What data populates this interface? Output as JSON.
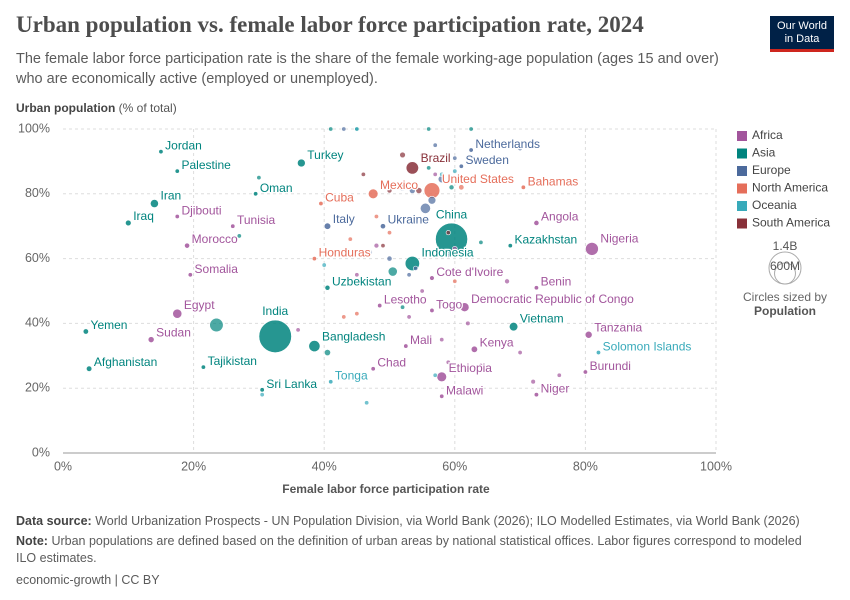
{
  "chart_data": {
    "type": "scatter",
    "title": "Urban population vs. female labor force participation rate, 2024",
    "subtitle": "The female labor force participation rate is the share of the female working-age population (ages 15 and over) who are economically active (employed or unemployed).",
    "logo": [
      "Our World",
      "in Data"
    ],
    "y_label": "Urban population",
    "y_label_unit": "(% of total)",
    "x_label": "Female labor force participation rate",
    "xlim": [
      0,
      100
    ],
    "ylim": [
      0,
      100
    ],
    "xticks": [
      {
        "value": 0,
        "label": "0%"
      },
      {
        "value": 20,
        "label": "20%"
      },
      {
        "value": 40,
        "label": "40%"
      },
      {
        "value": 60,
        "label": "60%"
      },
      {
        "value": 80,
        "label": "80%"
      },
      {
        "value": 100,
        "label": "100%"
      }
    ],
    "yticks": [
      {
        "value": 0,
        "label": "0%"
      },
      {
        "value": 20,
        "label": "20%"
      },
      {
        "value": 40,
        "label": "40%"
      },
      {
        "value": 60,
        "label": "60%"
      },
      {
        "value": 80,
        "label": "80%"
      },
      {
        "value": 100,
        "label": "100%"
      }
    ],
    "grid": true,
    "size_legend": {
      "values": [
        {
          "value": 1400000000,
          "label": "1.4B"
        },
        {
          "value": 600000000,
          "label": "600M"
        }
      ],
      "caption": "Circles sized by",
      "variable": "Population"
    },
    "series": [
      {
        "name": "Africa",
        "color": "#a2559c",
        "x": [
          17.5,
          26,
          19,
          19.5,
          17.5,
          13.5,
          48.5,
          56.5,
          61.5,
          56.5,
          72.5,
          72.5,
          81,
          52.5,
          47.5,
          58,
          63,
          80.5,
          80,
          72.5,
          58,
          36,
          55,
          58,
          68,
          62,
          72,
          64,
          70,
          48,
          60,
          58,
          76,
          45,
          57,
          59,
          53
        ],
        "y": [
          73,
          70,
          64,
          55,
          43,
          35,
          45.5,
          44,
          45,
          54,
          51,
          71,
          63,
          33,
          26,
          23.5,
          32,
          36.5,
          25,
          18,
          17.5,
          38,
          50,
          46,
          53,
          40,
          22,
          27,
          31,
          64,
          63,
          35,
          24,
          55,
          86,
          28,
          42
        ],
        "sizes": [
          1100000,
          12000000,
          37000000,
          19000000,
          116000000,
          50000000,
          2300000,
          9500000,
          110000000,
          31000000,
          14000000,
          37000000,
          230000000,
          24000000,
          20000000,
          130000000,
          56000000,
          68000000,
          14000000,
          27000000,
          21000000,
          18000000,
          9000000,
          13000000,
          34000000,
          29000000,
          30000000,
          19000000,
          20000000,
          33000000,
          35000000,
          15000000,
          7000000,
          2600000,
          5000000,
          5000000,
          8000000
        ],
        "labels": [
          "Djibouti",
          "Tunisia",
          "Morocco",
          "Somalia",
          "Egypt",
          "Sudan",
          "Lesotho",
          "Togo",
          "Democratic Republic of Congo",
          "Cote d'Ivoire",
          "Benin",
          "Angola",
          "Nigeria",
          "Mali",
          "Chad",
          "Ethiopia",
          "Kenya",
          "Tanzania",
          "Burundi",
          "Niger",
          "Malawi",
          null,
          null,
          null,
          null,
          null,
          null,
          null,
          null,
          null,
          null,
          null,
          null,
          null,
          null,
          null,
          null
        ]
      },
      {
        "name": "Asia",
        "color": "#00847e",
        "x": [
          15,
          17.5,
          14,
          10,
          29.5,
          36.5,
          3.5,
          4,
          32.5,
          38.5,
          21.5,
          40.5,
          53.5,
          59.5,
          68.5,
          69,
          30.5,
          23.5,
          40.5,
          50.5,
          62.5,
          56,
          59.5,
          27,
          45,
          56,
          64,
          41,
          30,
          52
        ],
        "y": [
          93,
          87,
          77,
          71,
          80,
          89.5,
          37.5,
          26,
          36,
          33,
          26.5,
          51,
          58.5,
          66,
          64,
          39,
          19.5,
          39.5,
          31,
          56,
          100,
          88,
          82,
          67,
          100,
          100,
          65,
          100,
          85,
          45
        ],
        "sizes": [
          11000000,
          5500000,
          91000000,
          46000000,
          5000000,
          86000000,
          40000000,
          42000000,
          1450000000,
          173000000,
          10000000,
          36000000,
          283000000,
          1410000000,
          20000000,
          101000000,
          22000000,
          251000000,
          54000000,
          115000000,
          500000,
          4500000,
          35000000,
          4000000,
          5000000,
          700000,
          10000000,
          7000000,
          5000000,
          7000000
        ],
        "labels": [
          "Jordan",
          "Palestine",
          "Iran",
          "Iraq",
          "Oman",
          "Turkey",
          "Yemen",
          "Afghanistan",
          "India",
          "Bangladesh",
          "Tajikistan",
          "Uzbekistan",
          "Indonesia",
          "China",
          "Kazakhstan",
          "Vietnam",
          "Sri Lanka",
          null,
          null,
          null,
          null,
          null,
          null,
          null,
          null,
          null,
          null,
          null,
          null,
          null
        ]
      },
      {
        "name": "Europe",
        "color": "#4c6a9c",
        "x": [
          62.5,
          61,
          40.5,
          49,
          56.5,
          55.5,
          52,
          58,
          50,
          53.5,
          60,
          59,
          54,
          70,
          57,
          47,
          53,
          60,
          43
        ],
        "y": [
          93.5,
          88.5,
          70,
          70,
          78,
          75.5,
          82,
          84.5,
          60,
          81,
          74,
          61,
          57,
          94,
          95,
          62,
          55,
          91,
          100
        ],
        "sizes": [
          18000000,
          10500000,
          59000000,
          38000000,
          84000000,
          144000000,
          68000000,
          69000000,
          37000000,
          48000000,
          10000000,
          10000000,
          19000000,
          400000,
          3000000,
          6000000,
          4000000,
          6000000,
          600000
        ],
        "labels": [
          "Netherlands",
          "Sweden",
          "Italy",
          "Ukraine",
          null,
          null,
          null,
          null,
          null,
          null,
          null,
          null,
          null,
          null,
          null,
          null,
          null,
          null,
          null
        ]
      },
      {
        "name": "North America",
        "color": "#e56e5a",
        "x": [
          47.5,
          56.5,
          39.5,
          70.5,
          38.5,
          44,
          48,
          46,
          50,
          61,
          60,
          43,
          45
        ],
        "y": [
          80,
          81,
          77,
          82,
          60,
          66,
          73,
          61,
          68,
          82,
          53,
          42,
          43
        ],
        "sizes": [
          130000000,
          340000000,
          11000000,
          400000,
          10600000,
          6000000,
          3000000,
          18000000,
          11000000,
          40000000,
          5000000,
          400000,
          200000
        ],
        "labels": [
          "Mexico",
          "United States",
          "Cuba",
          "Bahamas",
          "Honduras",
          null,
          null,
          null,
          null,
          null,
          null,
          null,
          null
        ]
      },
      {
        "name": "Oceania",
        "color": "#38aaba",
        "x": [
          41,
          82,
          46.5,
          30.5,
          57,
          60,
          58,
          45,
          40
        ],
        "y": [
          22,
          31,
          15.5,
          18,
          24,
          87,
          86,
          100,
          58
        ],
        "sizes": [
          100000,
          800000,
          10000000,
          300000,
          900000,
          27000000,
          5000000,
          100000,
          300000
        ],
        "labels": [
          "Tonga",
          "Solomon Islands",
          null,
          null,
          null,
          null,
          null,
          null,
          null
        ]
      },
      {
        "name": "South America",
        "color": "#883039",
        "x": [
          53.5,
          52,
          55,
          54.5,
          50,
          46,
          59,
          49
        ],
        "y": [
          88,
          92,
          92,
          81,
          81,
          86,
          68,
          64
        ],
        "sizes": [
          212000000,
          46000000,
          3400000,
          52000000,
          34000000,
          20000000,
          12000000,
          7000000
        ],
        "labels": [
          "Brazil",
          null,
          null,
          null,
          null,
          null,
          null,
          null
        ]
      }
    ],
    "source_label": "Data source:",
    "source": "World Urbanization Prospects - UN Population Division, via World Bank (2026); ILO Modelled Estimates, via World Bank (2026)",
    "note_label": "Note:",
    "note": "Urban populations are defined based on the definition of urban areas by national statistical offices. Labor figures correspond to modeled ILO estimates.",
    "footer": "economic-growth | CC BY"
  }
}
